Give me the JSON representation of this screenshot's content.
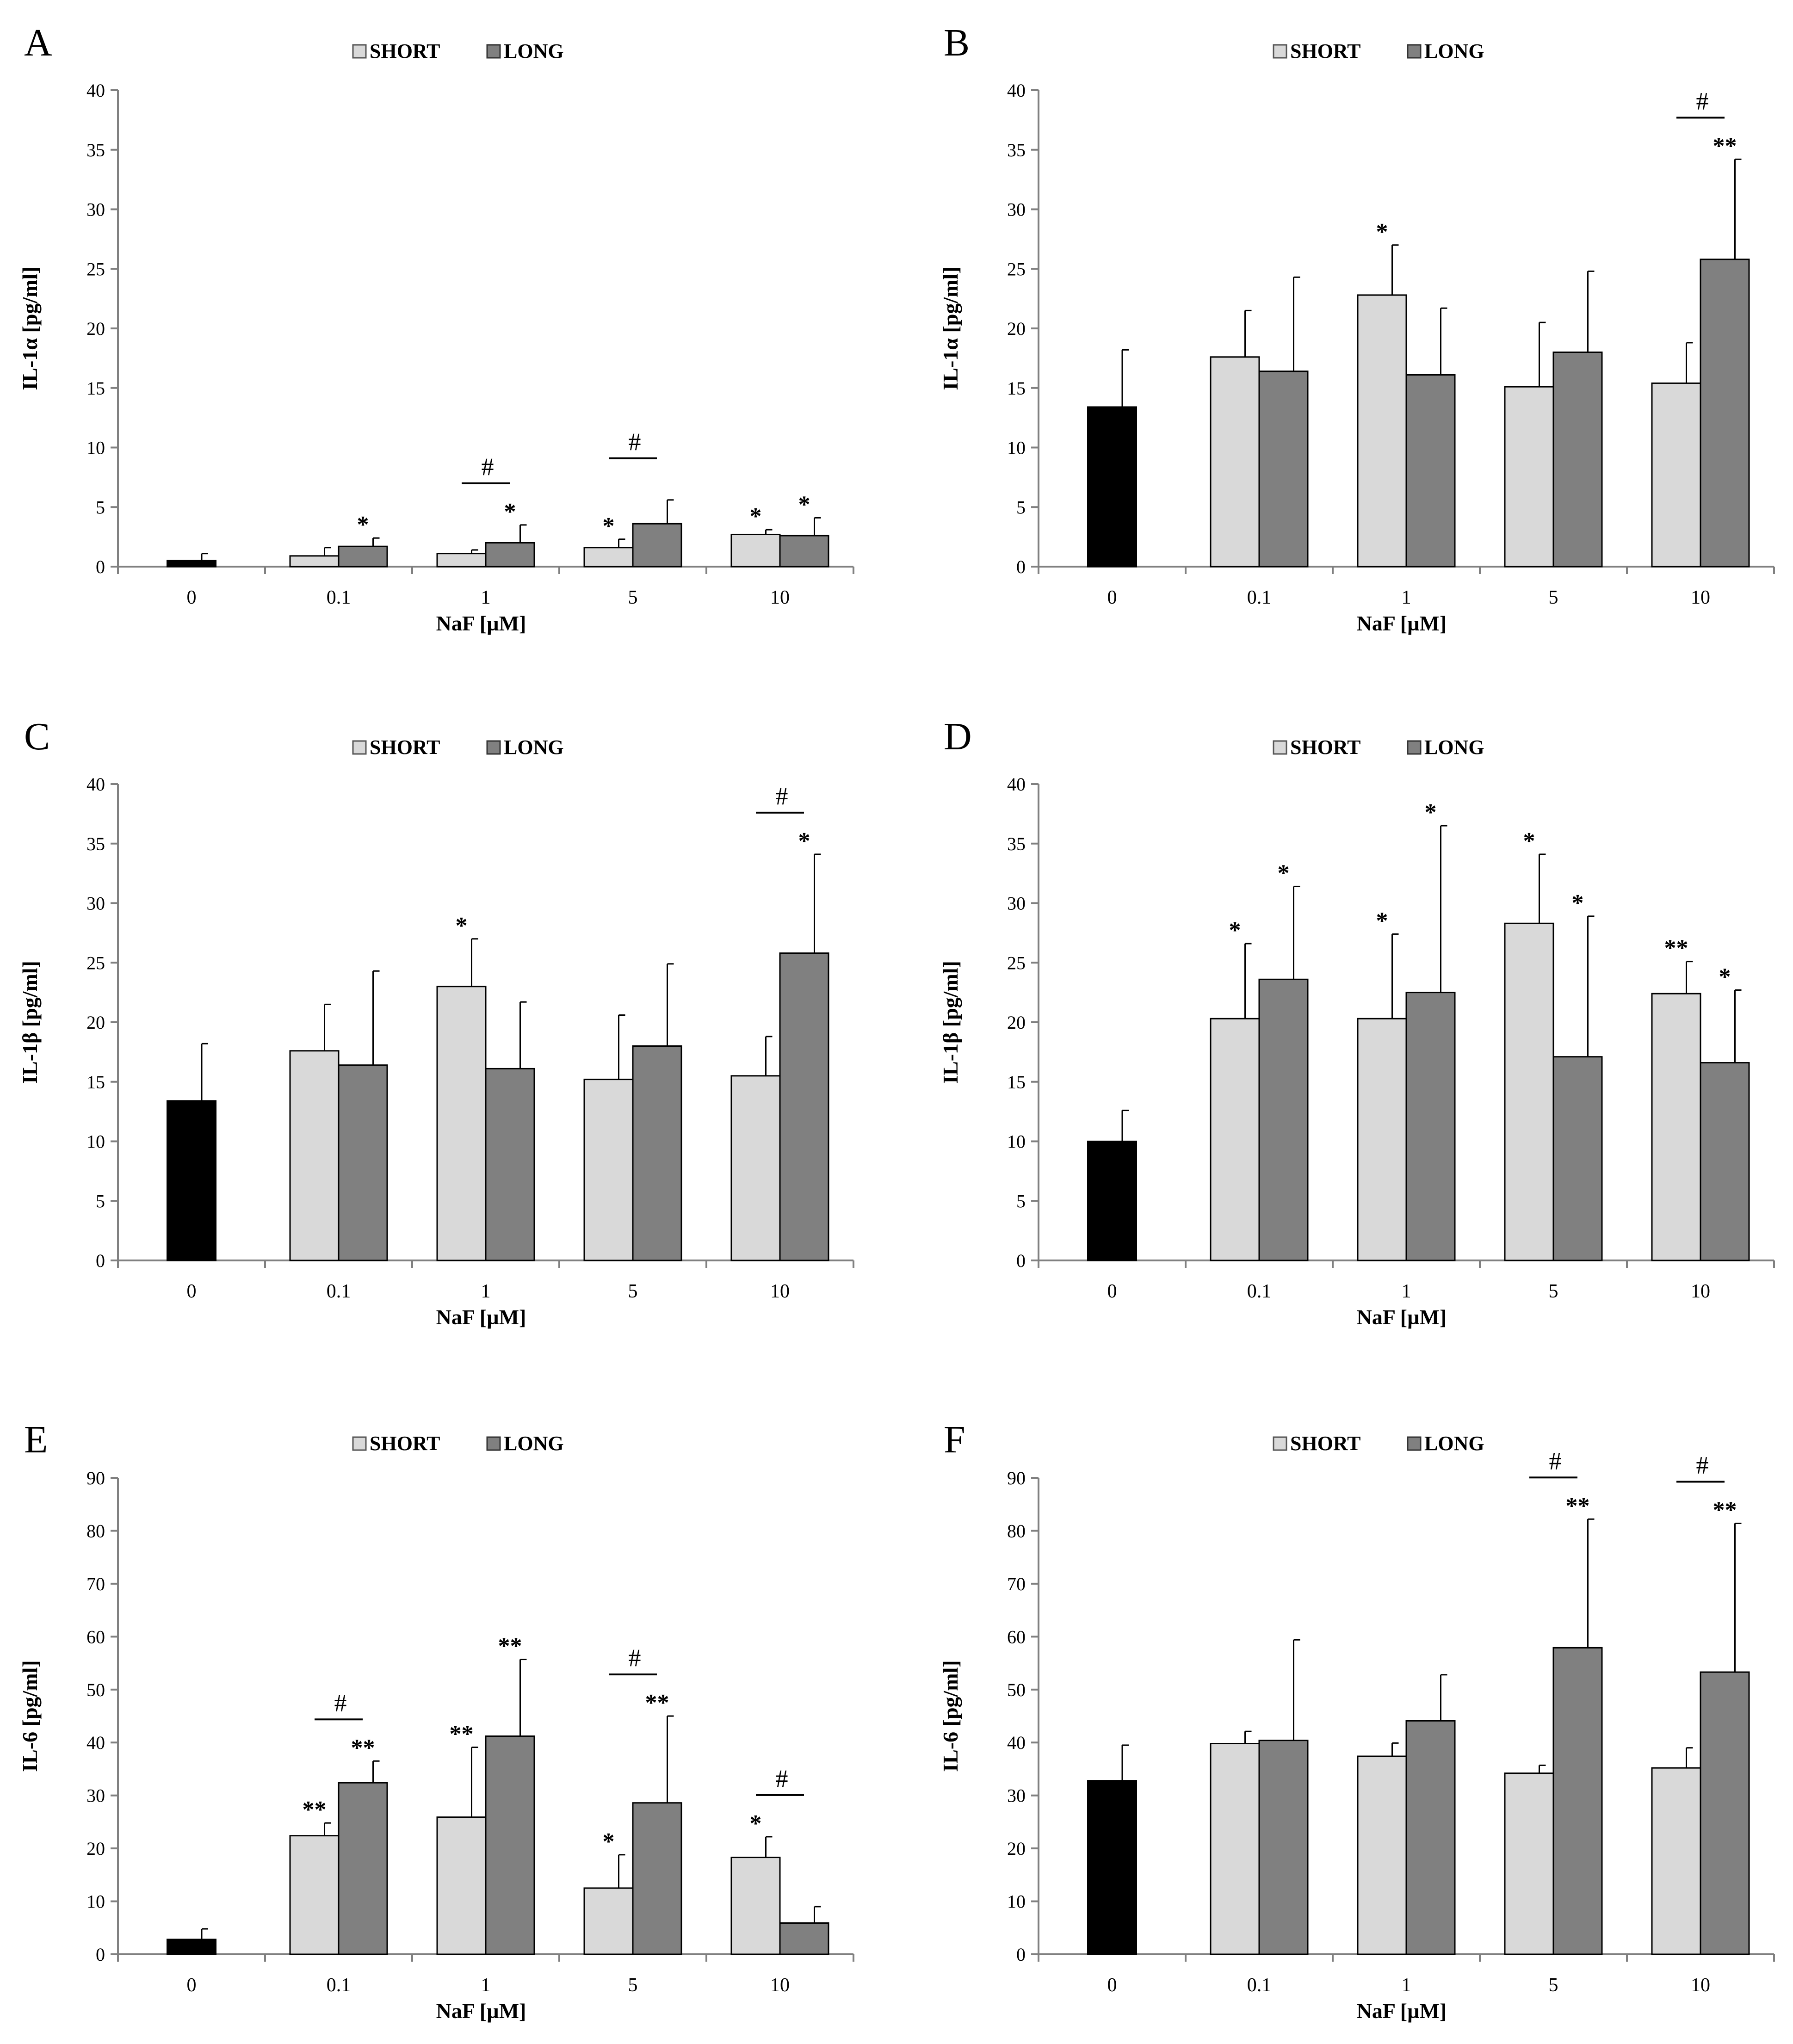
{
  "colors": {
    "control": "#000000",
    "short": "#d9d9d9",
    "long": "#808080",
    "axis": "#808080",
    "text": "#000000"
  },
  "chart_data": [
    {
      "panel": "A",
      "type": "bar",
      "ylabel": "IL-1α [pg/ml]",
      "xlabel": "NaF [µM]",
      "ylim": [
        0,
        40
      ],
      "ytick_step": 5,
      "legend": [
        "SHORT",
        "LONG"
      ],
      "legend_placement": "top-center",
      "categories": [
        "0",
        "0.1",
        "1",
        "5",
        "10"
      ],
      "control": {
        "value": 0.5,
        "error": 0.6
      },
      "series": [
        {
          "name": "SHORT",
          "values": [
            null,
            0.9,
            1.1,
            1.6,
            2.7
          ],
          "errors": [
            null,
            0.7,
            0.3,
            0.7,
            0.4
          ],
          "marks": [
            null,
            "",
            "",
            "*",
            "*"
          ]
        },
        {
          "name": "LONG",
          "values": [
            null,
            1.7,
            2.0,
            3.6,
            2.6
          ],
          "errors": [
            null,
            0.7,
            1.5,
            2.0,
            1.5
          ],
          "marks": [
            null,
            "*",
            "*",
            "",
            "*"
          ]
        }
      ],
      "hash": [
        false,
        false,
        true,
        true,
        false
      ]
    },
    {
      "panel": "B",
      "type": "bar",
      "ylabel": "IL-1α [pg/ml]",
      "xlabel": "NaF [µM]",
      "ylim": [
        0,
        40
      ],
      "ytick_step": 5,
      "legend": [
        "SHORT",
        "LONG"
      ],
      "legend_placement": "top-center",
      "categories": [
        "0",
        "0.1",
        "1",
        "5",
        "10"
      ],
      "control": {
        "value": 13.4,
        "error": 4.8
      },
      "series": [
        {
          "name": "SHORT",
          "values": [
            null,
            17.6,
            22.8,
            15.1,
            15.4
          ],
          "errors": [
            null,
            3.9,
            4.2,
            5.4,
            3.4
          ],
          "marks": [
            null,
            "",
            "*",
            "",
            ""
          ]
        },
        {
          "name": "LONG",
          "values": [
            null,
            16.4,
            16.1,
            18.0,
            25.8
          ],
          "errors": [
            null,
            7.9,
            5.6,
            6.8,
            8.4
          ],
          "marks": [
            null,
            "",
            "",
            "",
            "**"
          ]
        }
      ],
      "hash": [
        false,
        false,
        false,
        false,
        true
      ]
    },
    {
      "panel": "C",
      "type": "bar",
      "ylabel": "IL-1β [pg/ml]",
      "xlabel": "NaF [µM]",
      "ylim": [
        0,
        40
      ],
      "ytick_step": 5,
      "legend": [
        "SHORT",
        "LONG"
      ],
      "legend_placement": "top-center",
      "categories": [
        "0",
        "0.1",
        "1",
        "5",
        "10"
      ],
      "control": {
        "value": 13.4,
        "error": 4.8
      },
      "series": [
        {
          "name": "SHORT",
          "values": [
            null,
            17.6,
            23.0,
            15.2,
            15.5
          ],
          "errors": [
            null,
            3.9,
            4.0,
            5.4,
            3.3
          ],
          "marks": [
            null,
            "",
            "*",
            "",
            ""
          ]
        },
        {
          "name": "LONG",
          "values": [
            null,
            16.4,
            16.1,
            18.0,
            25.8
          ],
          "errors": [
            null,
            7.9,
            5.6,
            6.9,
            8.3
          ],
          "marks": [
            null,
            "",
            "",
            "",
            "*"
          ]
        }
      ],
      "hash": [
        false,
        false,
        false,
        false,
        true
      ]
    },
    {
      "panel": "D",
      "type": "bar",
      "ylabel": "IL-1β [pg/ml]",
      "xlabel": "NaF [µM]",
      "ylim": [
        0,
        40
      ],
      "ytick_step": 5,
      "legend": [
        "SHORT",
        "LONG"
      ],
      "legend_placement": "top-center",
      "categories": [
        "0",
        "0.1",
        "1",
        "5",
        "10"
      ],
      "control": {
        "value": 10.0,
        "error": 2.6
      },
      "series": [
        {
          "name": "SHORT",
          "values": [
            null,
            20.3,
            20.3,
            28.3,
            22.4
          ],
          "errors": [
            null,
            6.3,
            7.1,
            5.8,
            2.7
          ],
          "marks": [
            null,
            "*",
            "*",
            "*",
            "**"
          ]
        },
        {
          "name": "LONG",
          "values": [
            null,
            23.6,
            22.5,
            17.1,
            16.6
          ],
          "errors": [
            null,
            7.8,
            14.0,
            11.8,
            6.1
          ],
          "marks": [
            null,
            "*",
            "*",
            "*",
            "*"
          ]
        }
      ],
      "hash": [
        false,
        false,
        false,
        false,
        false
      ]
    },
    {
      "panel": "E",
      "type": "bar",
      "ylabel": "IL-6 [pg/ml]",
      "xlabel": "NaF [µM]",
      "ylim": [
        0,
        90
      ],
      "ytick_step": 10,
      "legend": [
        "SHORT",
        "LONG"
      ],
      "legend_placement": "top-center",
      "categories": [
        "0",
        "0.1",
        "1",
        "5",
        "10"
      ],
      "control": {
        "value": 2.8,
        "error": 2.0
      },
      "series": [
        {
          "name": "SHORT",
          "values": [
            null,
            22.4,
            25.9,
            12.5,
            18.3
          ],
          "errors": [
            null,
            2.4,
            13.2,
            6.3,
            3.9
          ],
          "marks": [
            null,
            "**",
            "**",
            "*",
            "*"
          ]
        },
        {
          "name": "LONG",
          "values": [
            null,
            32.4,
            41.2,
            28.6,
            5.9
          ],
          "errors": [
            null,
            4.1,
            14.5,
            16.4,
            3.1
          ],
          "marks": [
            null,
            "**",
            "**",
            "**",
            ""
          ]
        }
      ],
      "hash": [
        false,
        true,
        false,
        true,
        true
      ]
    },
    {
      "panel": "F",
      "type": "bar",
      "ylabel": "IL-6 [pg/ml]",
      "xlabel": "NaF [µM]",
      "ylim": [
        0,
        90
      ],
      "ytick_step": 10,
      "legend": [
        "SHORT",
        "LONG"
      ],
      "legend_placement": "top-center",
      "categories": [
        "0",
        "0.1",
        "1",
        "5",
        "10"
      ],
      "control": {
        "value": 32.8,
        "error": 6.7
      },
      "series": [
        {
          "name": "SHORT",
          "values": [
            null,
            39.8,
            37.4,
            34.2,
            35.2
          ],
          "errors": [
            null,
            2.3,
            2.5,
            1.5,
            3.8
          ],
          "marks": [
            null,
            "",
            "",
            "",
            ""
          ]
        },
        {
          "name": "LONG",
          "values": [
            null,
            40.4,
            44.1,
            57.9,
            53.3
          ],
          "errors": [
            null,
            19.0,
            8.7,
            24.3,
            28.1
          ],
          "marks": [
            null,
            "",
            "",
            "**",
            "**"
          ]
        }
      ],
      "hash": [
        false,
        false,
        false,
        true,
        true
      ]
    }
  ]
}
